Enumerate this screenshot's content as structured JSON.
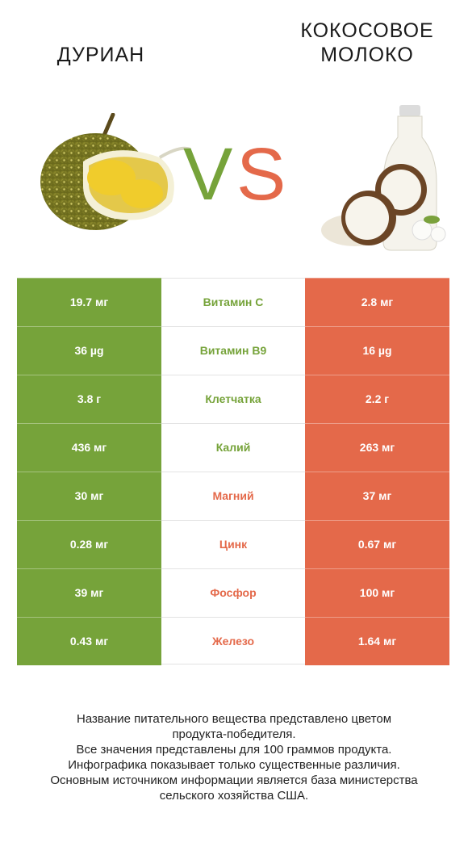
{
  "header": {
    "left_title": "ДУРИАН",
    "right_title": "КОКОСОВОЕ\nМОЛОКО",
    "vs_v": "V",
    "vs_s": "S"
  },
  "colors": {
    "left_product": "#76a33a",
    "right_product": "#e4694a"
  },
  "chart_data": {
    "type": "table",
    "columns": [
      "ДУРИАН",
      "",
      "КОКОСОВОЕ МОЛОКО"
    ],
    "rows": [
      {
        "nutrient": "Витамин C",
        "left": "19.7 мг",
        "right": "2.8 мг",
        "winner": "left"
      },
      {
        "nutrient": "Витамин B9",
        "left": "36 µg",
        "right": "16 µg",
        "winner": "left"
      },
      {
        "nutrient": "Клетчатка",
        "left": "3.8 г",
        "right": "2.2 г",
        "winner": "left"
      },
      {
        "nutrient": "Калий",
        "left": "436 мг",
        "right": "263 мг",
        "winner": "left"
      },
      {
        "nutrient": "Магний",
        "left": "30 мг",
        "right": "37 мг",
        "winner": "right"
      },
      {
        "nutrient": "Цинк",
        "left": "0.28 мг",
        "right": "0.67 мг",
        "winner": "right"
      },
      {
        "nutrient": "Фосфор",
        "left": "39 мг",
        "right": "100 мг",
        "winner": "right"
      },
      {
        "nutrient": "Железо",
        "left": "0.43 мг",
        "right": "1.64 мг",
        "winner": "right"
      }
    ]
  },
  "footer": {
    "lines": [
      "Название питательного вещества представлено цветом",
      "продукта-победителя.",
      "Все значения представлены для 100 граммов продукта.",
      "Инфографика показывает только существенные различия.",
      "Основным источником информации является база министерства",
      "сельского хозяйства США."
    ]
  }
}
